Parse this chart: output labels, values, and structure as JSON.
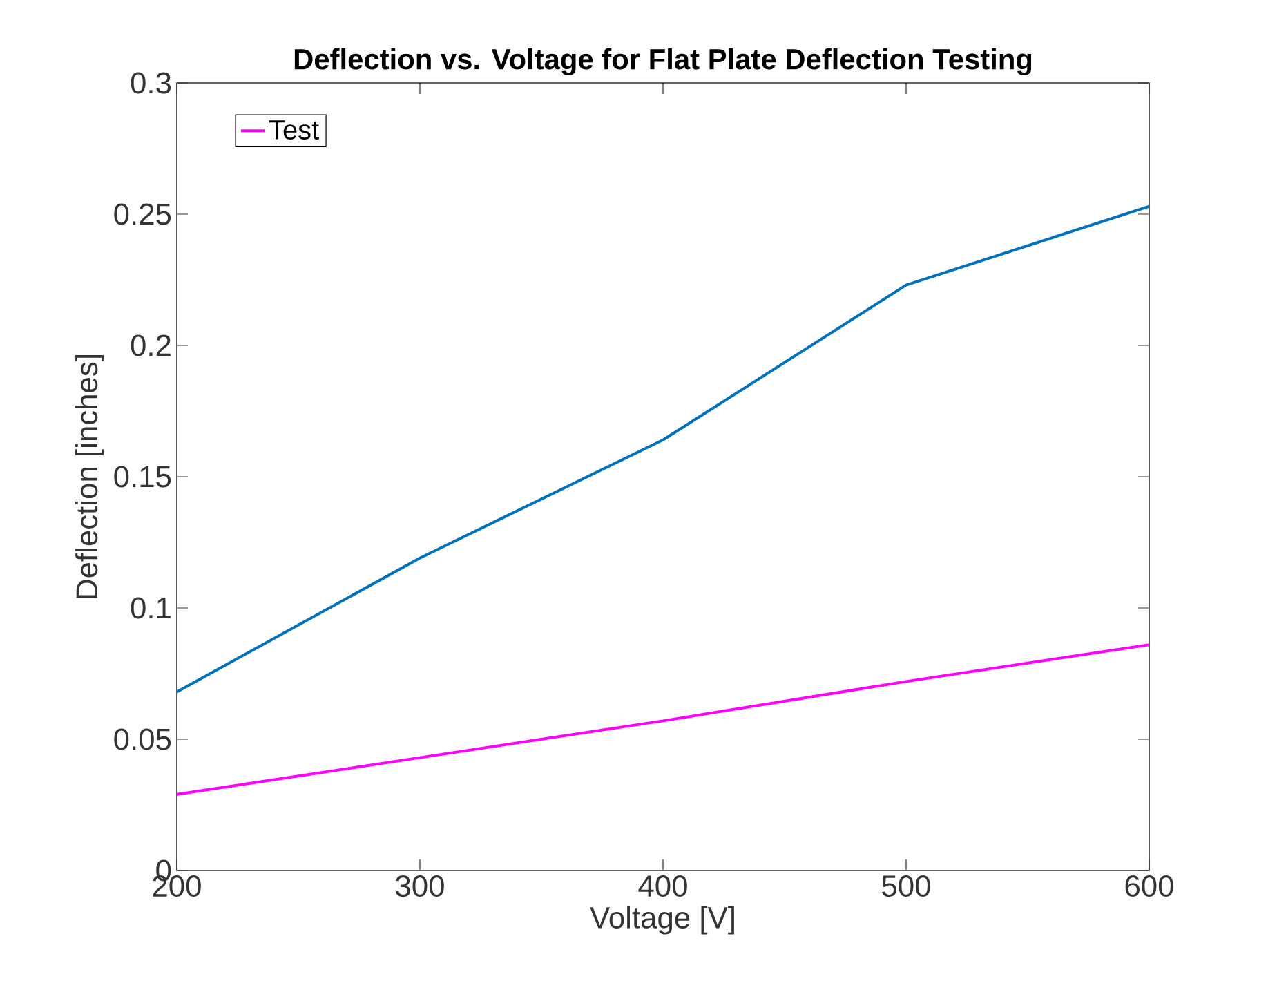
{
  "chart_data": {
    "type": "line",
    "title": "Deflection vs. Voltage for Flat Plate Deflection Testing",
    "xlabel": "Voltage [V]",
    "ylabel": "Deflection [inches]",
    "x": [
      200,
      300,
      400,
      500,
      600
    ],
    "series": [
      {
        "color": "#0072bd",
        "values": [
          0.068,
          0.119,
          0.164,
          0.223,
          0.253
        ]
      },
      {
        "name": "Test",
        "color": "#ff00ff",
        "values": [
          0.029,
          0.043,
          0.057,
          0.072,
          0.086
        ]
      }
    ],
    "xlim": [
      200,
      600
    ],
    "ylim": [
      0,
      0.3
    ],
    "xticks": [
      200,
      300,
      400,
      500,
      600
    ],
    "yticks": [
      0,
      0.05,
      0.1,
      0.15,
      0.2,
      0.25,
      0.3
    ],
    "grid": false,
    "legend": "top left",
    "marker": "none",
    "line_style": "solid"
  }
}
